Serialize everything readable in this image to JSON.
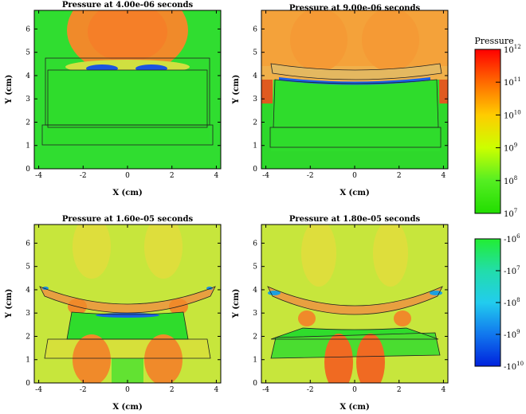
{
  "chart_data": [
    {
      "type": "heatmap",
      "title": "Pressure at 4.00e-06 seconds",
      "xlabel": "X (cm)",
      "ylabel": "Y (cm)",
      "xlim": [
        -4.2,
        4.2
      ],
      "ylim": [
        0,
        6.8
      ],
      "xticks": [
        "-4",
        "-2",
        "0",
        "2",
        "4"
      ],
      "yticks": [
        "0",
        "1",
        "2",
        "3",
        "4",
        "5",
        "6"
      ]
    },
    {
      "type": "heatmap",
      "title": "Pressure at 9.00e-06 seconds",
      "xlabel": "X (cm)",
      "ylabel": "Y (cm)",
      "xlim": [
        -4.2,
        4.2
      ],
      "ylim": [
        0,
        6.8
      ],
      "xticks": [
        "-4",
        "-2",
        "0",
        "2",
        "4"
      ],
      "yticks": [
        "0",
        "1",
        "2",
        "3",
        "4",
        "5",
        "6"
      ]
    },
    {
      "type": "heatmap",
      "title": "Pressure at 1.60e-05 seconds",
      "xlabel": "X (cm)",
      "ylabel": "Y (cm)",
      "xlim": [
        -4.2,
        4.2
      ],
      "ylim": [
        0,
        6.8
      ],
      "xticks": [
        "-4",
        "-2",
        "0",
        "2",
        "4"
      ],
      "yticks": [
        "0",
        "1",
        "2",
        "3",
        "4",
        "5",
        "6"
      ]
    },
    {
      "type": "heatmap",
      "title": "Pressure at 1.80e-05 seconds",
      "xlabel": "X (cm)",
      "ylabel": "Y (cm)",
      "xlim": [
        -4.2,
        4.2
      ],
      "ylim": [
        0,
        6.8
      ],
      "xticks": [
        "-4",
        "-2",
        "0",
        "2",
        "4"
      ],
      "yticks": [
        "0",
        "1",
        "2",
        "3",
        "4",
        "5",
        "6"
      ]
    }
  ],
  "colorbars": {
    "positive": {
      "title": "Pressure",
      "ticks": [
        {
          "base": "10",
          "exp": "12"
        },
        {
          "base": "10",
          "exp": "11"
        },
        {
          "base": "10",
          "exp": "10"
        },
        {
          "base": "10",
          "exp": "9"
        },
        {
          "base": "10",
          "exp": "8"
        },
        {
          "base": "10",
          "exp": "7"
        }
      ],
      "colors": [
        "#ff0000",
        "#ff6a00",
        "#ffcc00",
        "#ccff00",
        "#55ee22",
        "#22dd00"
      ]
    },
    "negative": {
      "ticks": [
        {
          "base": "-10",
          "exp": "6"
        },
        {
          "base": "-10",
          "exp": "7"
        },
        {
          "base": "-10",
          "exp": "8"
        },
        {
          "base": "-10",
          "exp": "9"
        },
        {
          "base": "-10",
          "exp": "10"
        }
      ],
      "colors": [
        "#22ee33",
        "#22ddaa",
        "#22ccee",
        "#1177ee",
        "#0022dd"
      ]
    }
  },
  "colors": {
    "green": "#2fe02a",
    "orange": "#f0952a",
    "yellow": "#cde63a",
    "blue": "#1a5de8"
  }
}
